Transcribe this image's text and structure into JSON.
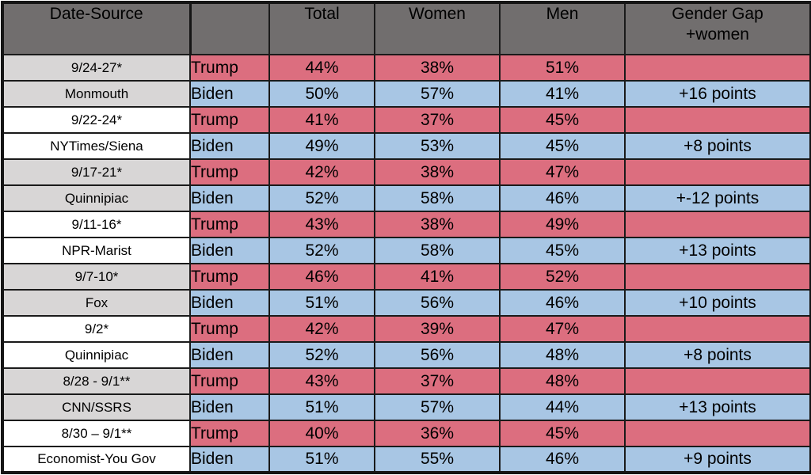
{
  "chart_data": {
    "type": "table",
    "headers": {
      "date_source": "Date-Source",
      "candidate": "",
      "total": "Total",
      "women": "Women",
      "men": "Men",
      "gender_gap_line1": "Gender Gap",
      "gender_gap_line2": "+women"
    },
    "rows": [
      {
        "date": "9/24-27*",
        "candidate": "Trump",
        "total": "44%",
        "women": "38%",
        "men": "51%",
        "gap": ""
      },
      {
        "date": "Monmouth",
        "candidate": "Biden",
        "total": "50%",
        "women": "57%",
        "men": "41%",
        "gap": "+16 points"
      },
      {
        "date": "9/22-24*",
        "candidate": "Trump",
        "total": "41%",
        "women": "37%",
        "men": "45%",
        "gap": ""
      },
      {
        "date": "NYTimes/Siena",
        "candidate": "Biden",
        "total": "49%",
        "women": "53%",
        "men": "45%",
        "gap": "+8 points"
      },
      {
        "date": "9/17-21*",
        "candidate": "Trump",
        "total": "42%",
        "women": "38%",
        "men": "47%",
        "gap": ""
      },
      {
        "date": "Quinnipiac",
        "candidate": "Biden",
        "total": "52%",
        "women": "58%",
        "men": "46%",
        "gap": "+-12 points"
      },
      {
        "date": "9/11-16*",
        "candidate": "Trump",
        "total": "43%",
        "women": "38%",
        "men": "49%",
        "gap": ""
      },
      {
        "date": "NPR-Marist",
        "candidate": "Biden",
        "total": "52%",
        "women": "58%",
        "men": "45%",
        "gap": "+13 points"
      },
      {
        "date": "9/7-10*",
        "candidate": "Trump",
        "total": "46%",
        "women": "41%",
        "men": "52%",
        "gap": ""
      },
      {
        "date": "Fox",
        "candidate": "Biden",
        "total": "51%",
        "women": "56%",
        "men": "46%",
        "gap": "+10 points"
      },
      {
        "date": "9/2*",
        "candidate": "Trump",
        "total": "42%",
        "women": "39%",
        "men": "47%",
        "gap": ""
      },
      {
        "date": "Quinnipiac",
        "candidate": "Biden",
        "total": "52%",
        "women": "56%",
        "men": "48%",
        "gap": "+8 points"
      },
      {
        "date": "8/28 - 9/1**",
        "candidate": "Trump",
        "total": "43%",
        "women": "37%",
        "men": "48%",
        "gap": ""
      },
      {
        "date": "CNN/SSRS",
        "candidate": "Biden",
        "total": "51%",
        "women": "57%",
        "men": "44%",
        "gap": "+13 points"
      },
      {
        "date": "8/30 – 9/1**",
        "candidate": "Trump",
        "total": "40%",
        "women": "36%",
        "men": "45%",
        "gap": ""
      },
      {
        "date": "Economist-You Gov",
        "candidate": "Biden",
        "total": "51%",
        "women": "55%",
        "men": "46%",
        "gap": "+9 points"
      }
    ]
  },
  "colors": {
    "header_bg": "#716e6e",
    "header_text": "#ffffff",
    "trump_row_bg": "#dc6e7f",
    "biden_row_bg": "#a8c6e4",
    "date_cell_gray": "#d8d6d6",
    "date_cell_white": "#ffffff",
    "grid_border": "#1a1a1a",
    "body_text": "#000000"
  }
}
